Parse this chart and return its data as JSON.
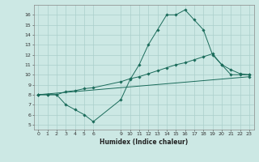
{
  "xlabel": "Humidex (Indice chaleur)",
  "bg_color": "#cce8e4",
  "grid_color": "#aacfcb",
  "line_color": "#1a6b5a",
  "xlim": [
    -0.5,
    23.5
  ],
  "ylim": [
    4.5,
    17.0
  ],
  "xticks": [
    0,
    1,
    2,
    3,
    4,
    5,
    6,
    9,
    10,
    11,
    12,
    13,
    14,
    15,
    16,
    17,
    18,
    19,
    20,
    21,
    22,
    23
  ],
  "yticks": [
    5,
    6,
    7,
    8,
    9,
    10,
    11,
    12,
    13,
    14,
    15,
    16
  ],
  "line1_x": [
    0,
    1,
    2,
    3,
    4,
    5,
    6,
    9,
    10,
    11,
    12,
    13,
    14,
    15,
    16,
    17,
    18,
    19,
    20,
    21,
    22,
    23
  ],
  "line1_y": [
    8,
    8,
    8,
    7,
    6.5,
    6,
    5.3,
    7.5,
    9.5,
    11,
    13,
    14.5,
    16,
    16,
    16.5,
    15.5,
    14.5,
    12,
    11,
    10,
    10,
    10
  ],
  "line2_x": [
    0,
    1,
    2,
    3,
    4,
    5,
    6,
    9,
    10,
    11,
    12,
    13,
    14,
    15,
    16,
    17,
    18,
    19,
    20,
    21,
    22,
    23
  ],
  "line2_y": [
    8,
    8,
    8,
    8.3,
    8.4,
    8.6,
    8.7,
    9.3,
    9.6,
    9.8,
    10.1,
    10.4,
    10.7,
    11.0,
    11.2,
    11.5,
    11.8,
    12.1,
    11.0,
    10.5,
    10.1,
    10.0
  ],
  "line3_x": [
    0,
    23
  ],
  "line3_y": [
    8.0,
    9.8
  ]
}
